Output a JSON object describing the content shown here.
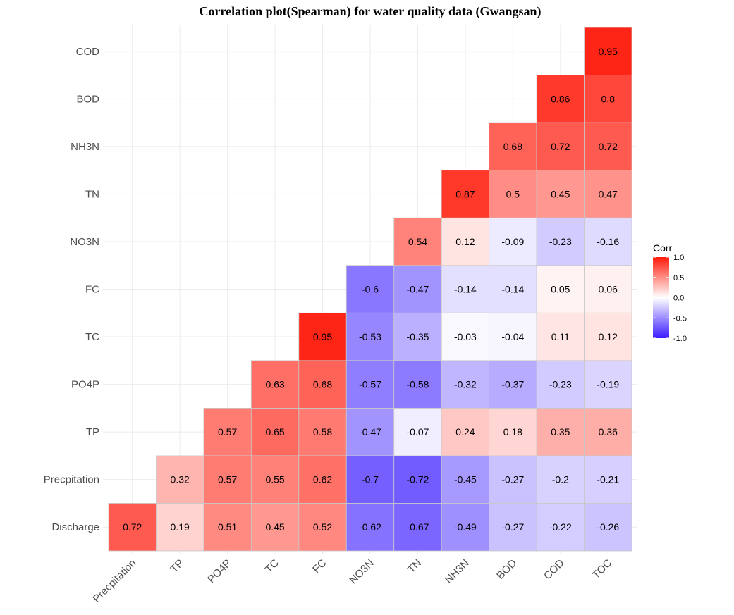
{
  "chart_data": {
    "type": "heatmap",
    "title": "Correlation plot(Spearman) for water quality data (Gwangsan)",
    "x_categories": [
      "Precpitation",
      "TP",
      "PO4P",
      "TC",
      "FC",
      "NO3N",
      "TN",
      "NH3N",
      "BOD",
      "COD",
      "TOC"
    ],
    "y_categories": [
      "Discharge",
      "Precpitation",
      "TP",
      "PO4P",
      "TC",
      "FC",
      "NO3N",
      "TN",
      "NH3N",
      "BOD",
      "COD"
    ],
    "values": [
      [
        0.72,
        0.19,
        0.51,
        0.45,
        0.52,
        -0.62,
        -0.67,
        -0.49,
        -0.27,
        -0.22,
        -0.26
      ],
      [
        null,
        0.32,
        0.57,
        0.55,
        0.62,
        -0.7,
        -0.72,
        -0.45,
        -0.27,
        -0.2,
        -0.21
      ],
      [
        null,
        null,
        0.57,
        0.65,
        0.58,
        -0.47,
        -0.07,
        0.24,
        0.18,
        0.35,
        0.36
      ],
      [
        null,
        null,
        null,
        0.63,
        0.68,
        -0.57,
        -0.58,
        -0.32,
        -0.37,
        -0.23,
        -0.19
      ],
      [
        null,
        null,
        null,
        null,
        0.95,
        -0.53,
        -0.35,
        -0.03,
        -0.04,
        0.11,
        0.12
      ],
      [
        null,
        null,
        null,
        null,
        null,
        -0.6,
        -0.47,
        -0.14,
        -0.14,
        0.05,
        0.06
      ],
      [
        null,
        null,
        null,
        null,
        null,
        null,
        0.54,
        0.12,
        -0.09,
        -0.23,
        -0.16
      ],
      [
        null,
        null,
        null,
        null,
        null,
        null,
        null,
        0.87,
        0.5,
        0.45,
        0.47
      ],
      [
        null,
        null,
        null,
        null,
        null,
        null,
        null,
        null,
        0.68,
        0.72,
        0.72
      ],
      [
        null,
        null,
        null,
        null,
        null,
        null,
        null,
        null,
        null,
        0.86,
        0.8
      ],
      [
        null,
        null,
        null,
        null,
        null,
        null,
        null,
        null,
        null,
        null,
        0.95
      ]
    ],
    "legend": {
      "title": "Corr",
      "ticks": [
        "1.0",
        "0.5",
        "0.0",
        "-0.5",
        "-1.0"
      ],
      "range": [
        -1,
        1
      ],
      "position": "right"
    },
    "colors": {
      "low": "#3a1cff",
      "mid": "#ffffff",
      "high": "#ff1a0a"
    },
    "grid": true
  }
}
